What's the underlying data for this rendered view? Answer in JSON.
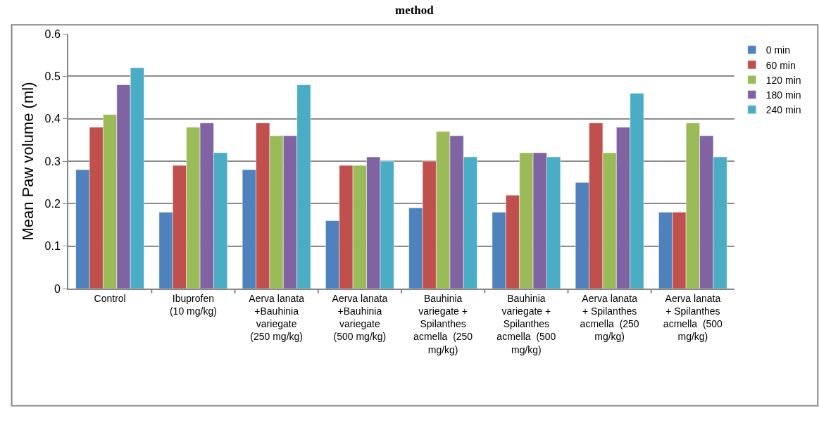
{
  "chart_data": {
    "type": "bar",
    "title": "method",
    "ylabel": "Mean Paw volume (ml)",
    "categories": [
      "Control",
      "Ibuprofen\n(10 mg/kg)",
      "Aerva lanata\n+Bauhinia\nvariegate\n(250 mg/kg)",
      "Aerva lanata\n+Bauhinia\nvariegate\n(500 mg/kg)",
      "Bauhinia\nvariegate +\nSpilanthes\nacmella  (250\nmg/kg)",
      "Bauhinia\nvariegate +\nSpilanthes\nacmella  (500\nmg/kg)",
      "Aerva lanata\n+ Spilanthes\nacmella  (250\nmg/kg)",
      "Aerva lanata\n+ Spilanthes\nacmella  (500\nmg/kg)"
    ],
    "series": [
      {
        "name": "0 min",
        "color": "#4f81bd",
        "values": [
          0.28,
          0.18,
          0.28,
          0.16,
          0.19,
          0.18,
          0.25,
          0.18
        ]
      },
      {
        "name": "60 min",
        "color": "#c0504d",
        "values": [
          0.38,
          0.29,
          0.39,
          0.29,
          0.3,
          0.22,
          0.39,
          0.18
        ]
      },
      {
        "name": "120 min",
        "color": "#9bbb59",
        "values": [
          0.41,
          0.38,
          0.36,
          0.29,
          0.37,
          0.32,
          0.32,
          0.39
        ]
      },
      {
        "name": "180 min",
        "color": "#8064a2",
        "values": [
          0.48,
          0.39,
          0.36,
          0.31,
          0.36,
          0.32,
          0.38,
          0.36
        ]
      },
      {
        "name": "240 min",
        "color": "#4bacc6",
        "values": [
          0.52,
          0.32,
          0.48,
          0.3,
          0.31,
          0.31,
          0.46,
          0.31
        ]
      }
    ],
    "ylim": [
      0,
      0.6
    ],
    "yticks": [
      0,
      0.1,
      0.2,
      0.3,
      0.4,
      0.5,
      0.6
    ],
    "grid": "y",
    "legend": "right"
  }
}
